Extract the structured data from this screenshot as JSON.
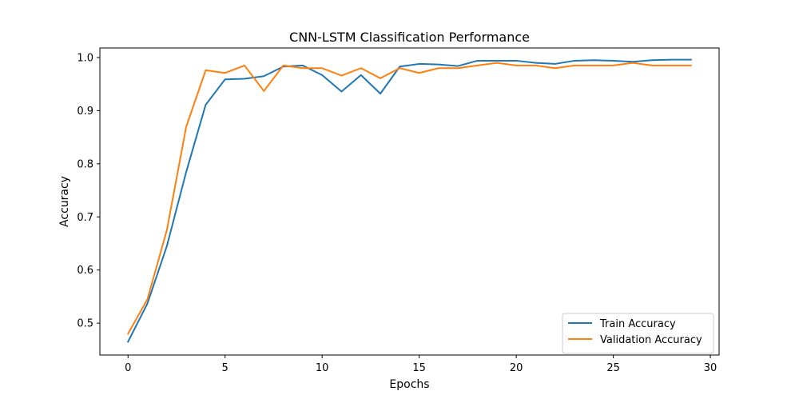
{
  "chart_data": {
    "type": "line",
    "title": "CNN-LSTM Classification Performance",
    "xlabel": "Epochs",
    "ylabel": "Accuracy",
    "xlim": [
      -1.45,
      30.45
    ],
    "ylim": [
      0.44,
      1.018
    ],
    "xticks": [
      0,
      5,
      10,
      15,
      20,
      25,
      30
    ],
    "yticks": [
      0.5,
      0.6,
      0.7,
      0.8,
      0.9,
      1.0
    ],
    "xtick_labels": [
      "0",
      "5",
      "10",
      "15",
      "20",
      "25",
      "30"
    ],
    "ytick_labels": [
      "0.5",
      "0.6",
      "0.7",
      "0.8",
      "0.9",
      "1.0"
    ],
    "grid": false,
    "legend_position": "lower-right",
    "x": [
      0,
      1,
      2,
      3,
      4,
      5,
      6,
      7,
      8,
      9,
      10,
      11,
      12,
      13,
      14,
      15,
      16,
      17,
      18,
      19,
      20,
      21,
      22,
      23,
      24,
      25,
      26,
      27,
      28,
      29
    ],
    "series": [
      {
        "name": "Train Accuracy",
        "color": "#1f77b4",
        "values": [
          0.465,
          0.537,
          0.645,
          0.785,
          0.911,
          0.959,
          0.96,
          0.965,
          0.983,
          0.985,
          0.967,
          0.936,
          0.967,
          0.932,
          0.983,
          0.988,
          0.987,
          0.984,
          0.994,
          0.994,
          0.994,
          0.99,
          0.988,
          0.994,
          0.995,
          0.994,
          0.992,
          0.995,
          0.996,
          0.996
        ]
      },
      {
        "name": "Validation Accuracy",
        "color": "#ff7f0e",
        "values": [
          0.48,
          0.545,
          0.675,
          0.87,
          0.976,
          0.971,
          0.985,
          0.937,
          0.985,
          0.98,
          0.98,
          0.966,
          0.98,
          0.961,
          0.98,
          0.971,
          0.98,
          0.98,
          0.985,
          0.99,
          0.985,
          0.985,
          0.98,
          0.985,
          0.985,
          0.985,
          0.99,
          0.985,
          0.985,
          0.985
        ]
      }
    ]
  }
}
